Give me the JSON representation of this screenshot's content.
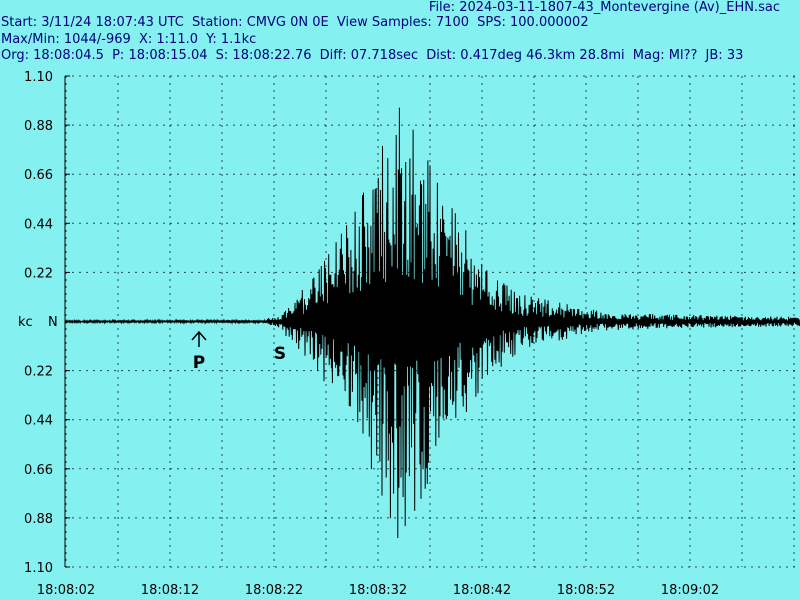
{
  "header": {
    "file_label": "File:",
    "file_name": "2024-03-11-1807-43_Montevergine (Av)_EHN.sac",
    "start_label": "Start:",
    "start_value": "3/11/24 18:07:43 UTC",
    "station_label": "Station:",
    "station_value": "CMVG 0N 0E",
    "view_samples_label": "View Samples:",
    "view_samples_value": "7100",
    "sps_label": "SPS:",
    "sps_value": "100.000002",
    "maxmin_label": "Max/Min:",
    "maxmin_value": "1044/-969",
    "x_label": "X:",
    "x_value": "1:11.0",
    "y_label": "Y:",
    "y_value": "1.1kc",
    "org_label": "Org:",
    "org_value": "18:08:04.5",
    "p_label": "P:",
    "p_value": "18:08:15.04",
    "s_label": "S:",
    "s_value": "18:08:22.76",
    "diff_label": "Diff:",
    "diff_value": "07.718sec",
    "dist_label": "Dist:",
    "dist_value": "0.417deg 46.3km 28.8mi",
    "mag_label": "Mag:",
    "mag_value": "Ml??",
    "jb_label": "JB:",
    "jb_value": "33"
  },
  "chart_data": {
    "type": "line",
    "unit_label": "kc",
    "channel_label": "N",
    "y_tick_labels_top": [
      "1.10",
      "0.88",
      "0.66",
      "0.44",
      "0.22"
    ],
    "y_tick_labels_bottom": [
      "0.22",
      "0.44",
      "0.66",
      "0.88",
      "1.10"
    ],
    "y_tick_values": [
      1.1,
      0.88,
      0.66,
      0.44,
      0.22,
      0,
      -0.22,
      -0.44,
      -0.66,
      -0.88,
      -1.1
    ],
    "ylim": [
      -1.1,
      1.1
    ],
    "x_tick_labels": [
      "18:08:02",
      "18:08:12",
      "18:08:22",
      "18:08:32",
      "18:08:42",
      "18:08:52",
      "18:09:02"
    ],
    "x_range_seconds": 71,
    "grid": true,
    "max_count": 1044,
    "min_count": -969,
    "phase_markers": [
      {
        "label": "P",
        "time": "18:08:15.04"
      },
      {
        "label": "S",
        "time": "18:08:22.76"
      }
    ],
    "trace_envelope": {
      "time_offsets_s": [
        0,
        19,
        20.5,
        22,
        24,
        26,
        28,
        30,
        32,
        34,
        36,
        38,
        40,
        42,
        44,
        48,
        52,
        58,
        71
      ],
      "amplitude_kc": [
        0.005,
        0.006,
        0.03,
        0.1,
        0.2,
        0.35,
        0.5,
        0.72,
        0.97,
        0.82,
        0.6,
        0.45,
        0.3,
        0.2,
        0.12,
        0.08,
        0.04,
        0.03,
        0.02
      ]
    },
    "colors": {
      "background": "#84f0f0",
      "trace": "#000000",
      "header_text": "#000080",
      "grid": "#000000"
    }
  }
}
